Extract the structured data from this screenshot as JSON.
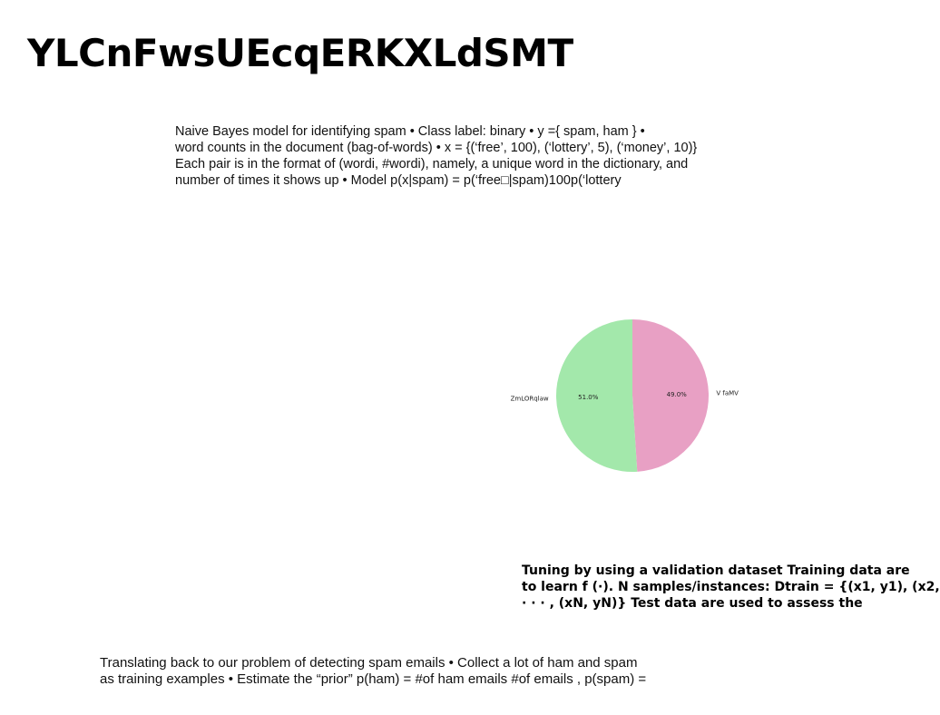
{
  "page": {
    "title": "YLCnFwsUEcqERKXLdSMT"
  },
  "blocks": {
    "intro_lines": [
      "Naive Bayes model for identifying spam • Class label: binary • y ={ spam, ham } •",
      "word counts in the document (bag-of-words) • x = {(‘free’, 100), (‘lottery’, 5), (‘money’, 10)}",
      "Each pair is in the format of (wordi, #wordi), namely, a unique word in the dictionary, and",
      "number of times it shows up • Model p(x|spam) = p(‘free□|spam)100p(‘lottery"
    ],
    "tuning_lines": [
      "Tuning by using a validation dataset Training data are",
      "to learn f (·). N samples/instances: Dtrain = {(x1, y1), (x2,",
      "· · · , (xN, yN)} Test data are used to assess the"
    ],
    "translate_lines": [
      "Translating back to our problem of detecting spam emails • Collect a lot of ham and spam",
      "as training examples • Estimate the “prior” p(ham) = #of ham emails #of emails , p(spam) ="
    ]
  },
  "chart_data": {
    "type": "pie",
    "slices": [
      {
        "label": "V faMV",
        "value": 49.0,
        "pct_label": "49.0%",
        "color": "#e8a0c4"
      },
      {
        "label": "ZmLORqlaw",
        "value": 51.0,
        "pct_label": "51.0%",
        "color": "#a3e8ab"
      }
    ],
    "start_angle": "top",
    "direction": "clockwise"
  }
}
